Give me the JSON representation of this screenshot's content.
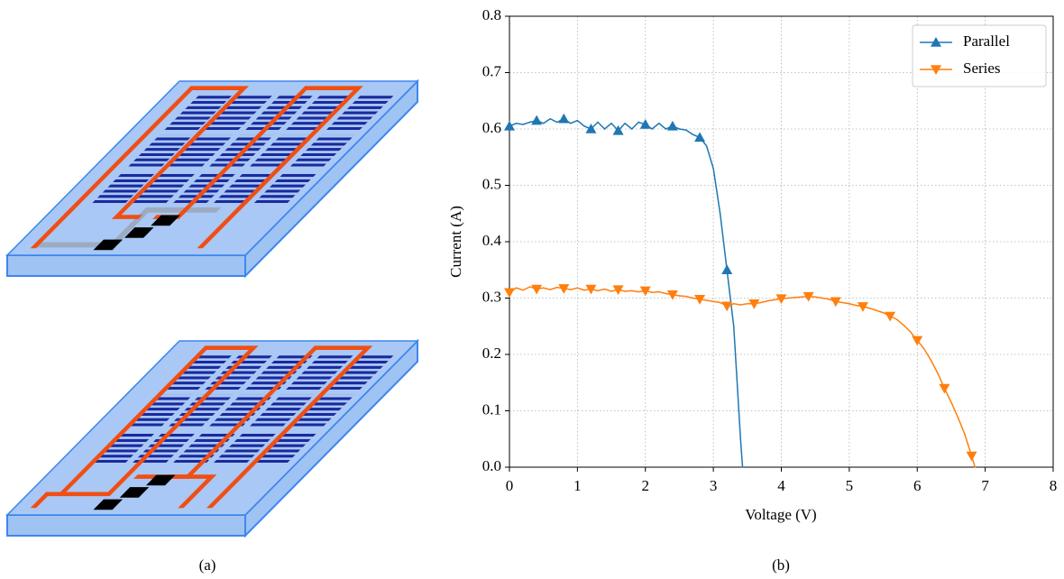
{
  "panel_labels": [
    "(a)",
    "(b)"
  ],
  "chart_data": {
    "type": "line",
    "x_label": "Voltage (V)",
    "y_label": "Current (A)",
    "xlim": [
      0,
      8
    ],
    "ylim": [
      0,
      0.8
    ],
    "xticks": [
      0,
      1,
      2,
      3,
      4,
      5,
      6,
      7,
      8
    ],
    "yticks": [
      {
        "value": 0,
        "label": "0.0"
      },
      0.1,
      0.2,
      0.3,
      0.4,
      0.5,
      0.6,
      0.7,
      0.8
    ],
    "grid": true,
    "legend": "upper right",
    "markevery": 4,
    "series": [
      {
        "name": "Parallel",
        "color": "#1f77b4",
        "marker": "triangle-up",
        "x": [
          0,
          0.1,
          0.2,
          0.3,
          0.4,
          0.5,
          0.6,
          0.7,
          0.8,
          0.9,
          1.0,
          1.1,
          1.2,
          1.3,
          1.4,
          1.5,
          1.6,
          1.7,
          1.8,
          1.9,
          2.0,
          2.1,
          2.2,
          2.3,
          2.4,
          2.5,
          2.6,
          2.7,
          2.8,
          2.9,
          3.0,
          3.1,
          3.2,
          3.3,
          3.4,
          3.43
        ],
        "values": [
          0.605,
          0.61,
          0.608,
          0.612,
          0.615,
          0.61,
          0.618,
          0.612,
          0.618,
          0.61,
          0.615,
          0.605,
          0.6,
          0.612,
          0.6,
          0.61,
          0.597,
          0.61,
          0.6,
          0.612,
          0.608,
          0.6,
          0.61,
          0.6,
          0.605,
          0.6,
          0.598,
          0.59,
          0.585,
          0.57,
          0.53,
          0.45,
          0.35,
          0.25,
          0.05,
          0
        ]
      },
      {
        "name": "Series",
        "color": "#ff7f0e",
        "marker": "triangle-down",
        "x": [
          0,
          0.1,
          0.2,
          0.3,
          0.4,
          0.5,
          0.6,
          0.7,
          0.8,
          0.9,
          1.0,
          1.1,
          1.2,
          1.3,
          1.4,
          1.5,
          1.6,
          1.7,
          1.8,
          1.9,
          2.0,
          2.1,
          2.2,
          2.3,
          2.4,
          2.5,
          2.6,
          2.7,
          2.8,
          2.9,
          3.0,
          3.1,
          3.2,
          3.3,
          3.4,
          3.5,
          3.6,
          3.7,
          3.8,
          3.9,
          4.0,
          4.1,
          4.2,
          4.3,
          4.4,
          4.5,
          4.6,
          4.7,
          4.8,
          4.9,
          5.0,
          5.1,
          5.2,
          5.3,
          5.4,
          5.5,
          5.6,
          5.7,
          5.8,
          5.9,
          6.0,
          6.1,
          6.2,
          6.3,
          6.4,
          6.5,
          6.6,
          6.7,
          6.8,
          6.85
        ],
        "values": [
          0.31,
          0.318,
          0.314,
          0.32,
          0.316,
          0.318,
          0.315,
          0.319,
          0.317,
          0.315,
          0.318,
          0.314,
          0.316,
          0.313,
          0.316,
          0.312,
          0.315,
          0.312,
          0.313,
          0.311,
          0.313,
          0.31,
          0.311,
          0.308,
          0.306,
          0.304,
          0.303,
          0.3,
          0.298,
          0.296,
          0.294,
          0.292,
          0.286,
          0.29,
          0.288,
          0.29,
          0.29,
          0.292,
          0.295,
          0.297,
          0.299,
          0.3,
          0.301,
          0.302,
          0.303,
          0.302,
          0.3,
          0.298,
          0.294,
          0.292,
          0.29,
          0.287,
          0.285,
          0.282,
          0.278,
          0.274,
          0.268,
          0.262,
          0.252,
          0.24,
          0.225,
          0.21,
          0.19,
          0.167,
          0.14,
          0.115,
          0.088,
          0.058,
          0.02,
          0
        ]
      }
    ]
  }
}
